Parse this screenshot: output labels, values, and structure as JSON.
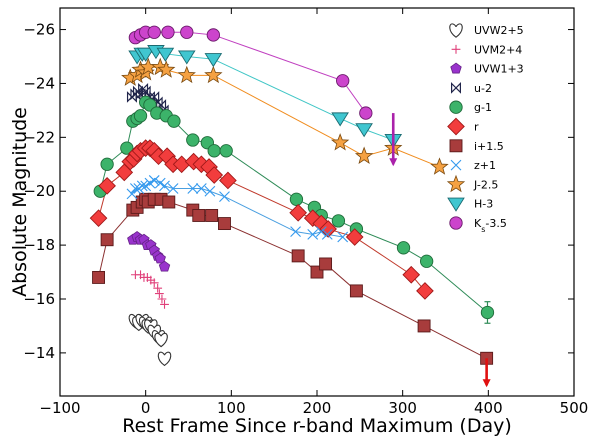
{
  "chart_data": {
    "type": "scatter",
    "title": "",
    "xlabel": "Rest Frame Since r-band Maximum (Day)",
    "ylabel": "Absolute Magnitude",
    "xlim": [
      -100,
      500
    ],
    "ylim": [
      -26.8,
      -12.4
    ],
    "y_inverted": true,
    "x_ticks": [
      -100,
      0,
      100,
      200,
      300,
      400,
      500
    ],
    "y_ticks": [
      -26,
      -24,
      -22,
      -20,
      -18,
      -16,
      -14
    ],
    "x_tick_labels": [
      "−100",
      "0",
      "100",
      "200",
      "300",
      "400",
      "500"
    ],
    "y_tick_labels": [
      "−26",
      "−24",
      "−22",
      "−20",
      "−18",
      "−16",
      "−14"
    ],
    "legend_position": "right",
    "series": [
      {
        "name": "UVW2+5",
        "marker": "heart",
        "color": "#ffffff",
        "edge": "#333333",
        "connected": false,
        "points": [
          [
            -12,
            -15.2
          ],
          [
            -8,
            -15.1
          ],
          [
            -4,
            -15.2
          ],
          [
            0,
            -15.1
          ],
          [
            3,
            -15.0
          ],
          [
            6,
            -15.0
          ],
          [
            10,
            -14.8
          ],
          [
            15,
            -14.6
          ],
          [
            18,
            -14.5
          ],
          [
            22,
            -13.8
          ]
        ]
      },
      {
        "name": "UVM2+4",
        "marker": "plus",
        "color": "#e0407a",
        "edge": "#c03060",
        "connected": false,
        "points": [
          [
            -12,
            -16.9
          ],
          [
            -6,
            -16.9
          ],
          [
            -2,
            -16.8
          ],
          [
            2,
            -16.8
          ],
          [
            6,
            -16.7
          ],
          [
            10,
            -16.6
          ],
          [
            14,
            -16.4
          ],
          [
            16,
            -16.2
          ],
          [
            19,
            -16.0
          ],
          [
            22,
            -15.8
          ]
        ]
      },
      {
        "name": "UVW1+3",
        "marker": "pentagon",
        "color": "#9933cc",
        "edge": "#662288",
        "connected": false,
        "points": [
          [
            -15,
            -18.2
          ],
          [
            -10,
            -18.3
          ],
          [
            -6,
            -18.2
          ],
          [
            -2,
            -18.2
          ],
          [
            2,
            -18.0
          ],
          [
            6,
            -18.0
          ],
          [
            10,
            -17.8
          ],
          [
            14,
            -17.6
          ],
          [
            17,
            -17.5
          ],
          [
            22,
            -17.2
          ]
        ]
      },
      {
        "name": "u-2",
        "marker": "bowtie",
        "color": "#2a3060",
        "edge": "#20244a",
        "connected": false,
        "points": [
          [
            -16,
            -23.5
          ],
          [
            -12,
            -23.6
          ],
          [
            -9,
            -23.7
          ],
          [
            -6,
            -23.6
          ],
          [
            -3,
            -23.8
          ],
          [
            0,
            -23.7
          ],
          [
            5,
            -23.5
          ],
          [
            10,
            -23.5
          ],
          [
            14,
            -23.3
          ],
          [
            18,
            -23.2
          ],
          [
            21,
            -23.0
          ]
        ]
      },
      {
        "name": "g-1",
        "marker": "circle",
        "color": "#3cb36a",
        "edge": "#1f6b3a",
        "line": "#2e8b57",
        "connected": true,
        "points": [
          [
            -53,
            -20.0
          ],
          [
            -45,
            -21.0
          ],
          [
            -22,
            -21.6
          ],
          [
            -15,
            -22.6
          ],
          [
            -10,
            -22.7
          ],
          [
            -6,
            -22.8
          ],
          [
            0,
            -23.3
          ],
          [
            5,
            -23.2
          ],
          [
            13,
            -22.9
          ],
          [
            24,
            -22.8
          ],
          [
            33,
            -22.6
          ],
          [
            55,
            -21.9
          ],
          [
            72,
            -21.8
          ],
          [
            80,
            -21.5
          ],
          [
            94,
            -21.5
          ],
          [
            176,
            -19.7
          ],
          [
            197,
            -19.4
          ],
          [
            205,
            -19.1
          ],
          [
            225,
            -18.9
          ],
          [
            246,
            -18.6
          ],
          [
            301,
            -17.9
          ],
          [
            328,
            -17.4
          ],
          [
            399,
            -15.5
          ]
        ]
      },
      {
        "name": "r",
        "marker": "diamond",
        "color": "#f23d3d",
        "edge": "#a01818",
        "line": "#c0392b",
        "connected": true,
        "points": [
          [
            -55,
            -19.0
          ],
          [
            -45,
            -20.2
          ],
          [
            -25,
            -20.7
          ],
          [
            -18,
            -21.1
          ],
          [
            -14,
            -21.2
          ],
          [
            -10,
            -21.4
          ],
          [
            -6,
            -21.5
          ],
          [
            0,
            -21.6
          ],
          [
            5,
            -21.6
          ],
          [
            10,
            -21.5
          ],
          [
            15,
            -21.3
          ],
          [
            25,
            -21.3
          ],
          [
            32,
            -21.0
          ],
          [
            42,
            -21.0
          ],
          [
            56,
            -21.1
          ],
          [
            65,
            -21.0
          ],
          [
            74,
            -20.9
          ],
          [
            80,
            -20.6
          ],
          [
            96,
            -20.4
          ],
          [
            178,
            -19.2
          ],
          [
            195,
            -19.0
          ],
          [
            205,
            -18.8
          ],
          [
            213,
            -18.6
          ],
          [
            244,
            -18.3
          ],
          [
            310,
            -16.9
          ],
          [
            326,
            -16.3
          ]
        ]
      },
      {
        "name": "i+1.5",
        "marker": "square",
        "color": "#a83c3c",
        "edge": "#5a1a1a",
        "line": "#8b3030",
        "connected": true,
        "points": [
          [
            -55,
            -16.8
          ],
          [
            -45,
            -18.2
          ],
          [
            -15,
            -19.3
          ],
          [
            -10,
            -19.4
          ],
          [
            -4,
            -19.6
          ],
          [
            0,
            -19.7
          ],
          [
            3,
            -19.6
          ],
          [
            10,
            -19.7
          ],
          [
            18,
            -19.7
          ],
          [
            27,
            -19.6
          ],
          [
            55,
            -19.3
          ],
          [
            62,
            -19.1
          ],
          [
            77,
            -19.1
          ],
          [
            92,
            -18.8
          ],
          [
            178,
            -17.6
          ],
          [
            200,
            -17.0
          ],
          [
            210,
            -17.3
          ],
          [
            246,
            -16.3
          ],
          [
            325,
            -15.0
          ],
          [
            398,
            -13.8
          ]
        ]
      },
      {
        "name": "z+1",
        "marker": "x",
        "color": "#3399ee",
        "edge": "#3399ee",
        "line": "#4a9fe0",
        "connected": true,
        "points": [
          [
            -16,
            -19.9
          ],
          [
            -12,
            -20.1
          ],
          [
            -8,
            -20.1
          ],
          [
            -4,
            -20.2
          ],
          [
            0,
            -20.2
          ],
          [
            5,
            -20.3
          ],
          [
            10,
            -20.4
          ],
          [
            17,
            -20.3
          ],
          [
            22,
            -20.2
          ],
          [
            32,
            -20.1
          ],
          [
            55,
            -20.1
          ],
          [
            65,
            -20.1
          ],
          [
            75,
            -20.0
          ],
          [
            92,
            -19.8
          ],
          [
            175,
            -18.5
          ],
          [
            195,
            -18.4
          ],
          [
            205,
            -18.5
          ],
          [
            212,
            -18.4
          ],
          [
            230,
            -18.3
          ]
        ]
      },
      {
        "name": "J-2.5",
        "marker": "star",
        "color": "#f5a142",
        "edge": "#7a4a10",
        "line": "#f08c1e",
        "connected": true,
        "points": [
          [
            -18,
            -24.2
          ],
          [
            -10,
            -24.3
          ],
          [
            -6,
            -24.5
          ],
          [
            0,
            -24.4
          ],
          [
            3,
            -24.6
          ],
          [
            17,
            -24.6
          ],
          [
            24,
            -24.5
          ],
          [
            48,
            -24.3
          ],
          [
            79,
            -24.3
          ],
          [
            227,
            -21.8
          ],
          [
            255,
            -21.3
          ],
          [
            289,
            -21.6
          ],
          [
            343,
            -20.9
          ]
        ]
      },
      {
        "name": "H-3",
        "marker": "triangle-down",
        "color": "#40c6d0",
        "edge": "#1a6a70",
        "line": "#40c6c6",
        "connected": true,
        "points": [
          [
            -10,
            -25.0
          ],
          [
            -4,
            -25.1
          ],
          [
            0,
            -25.1
          ],
          [
            12,
            -25.2
          ],
          [
            23,
            -25.1
          ],
          [
            48,
            -25.0
          ],
          [
            79,
            -24.9
          ],
          [
            227,
            -22.7
          ],
          [
            255,
            -22.3
          ],
          [
            289,
            -21.9
          ]
        ]
      },
      {
        "name": "K_s-3.5",
        "marker": "circle",
        "color": "#cc44cc",
        "edge": "#6a1a6a",
        "line": "#c040c0",
        "connected": true,
        "points": [
          [
            -12,
            -25.7
          ],
          [
            -6,
            -25.8
          ],
          [
            0,
            -25.9
          ],
          [
            10,
            -25.9
          ],
          [
            26,
            -25.9
          ],
          [
            48,
            -25.9
          ],
          [
            79,
            -25.8
          ],
          [
            230,
            -24.1
          ],
          [
            257,
            -22.9
          ]
        ]
      }
    ],
    "error_bars": [
      {
        "x": 399,
        "y": -15.5,
        "err": 0.4,
        "color": "#2e8b57"
      },
      {
        "x": 398,
        "y": -13.8,
        "err": 0.2,
        "color": "#8b3030"
      },
      {
        "x": 246,
        "y": -16.3,
        "err": 0.2,
        "color": "#8b3030"
      }
    ],
    "upper_limits": [
      {
        "x": 289,
        "y": -22.9,
        "to": -21.0,
        "color": "#aa22aa"
      },
      {
        "x": 398,
        "y": -13.8,
        "to": -12.8,
        "color": "#e01010"
      }
    ]
  }
}
